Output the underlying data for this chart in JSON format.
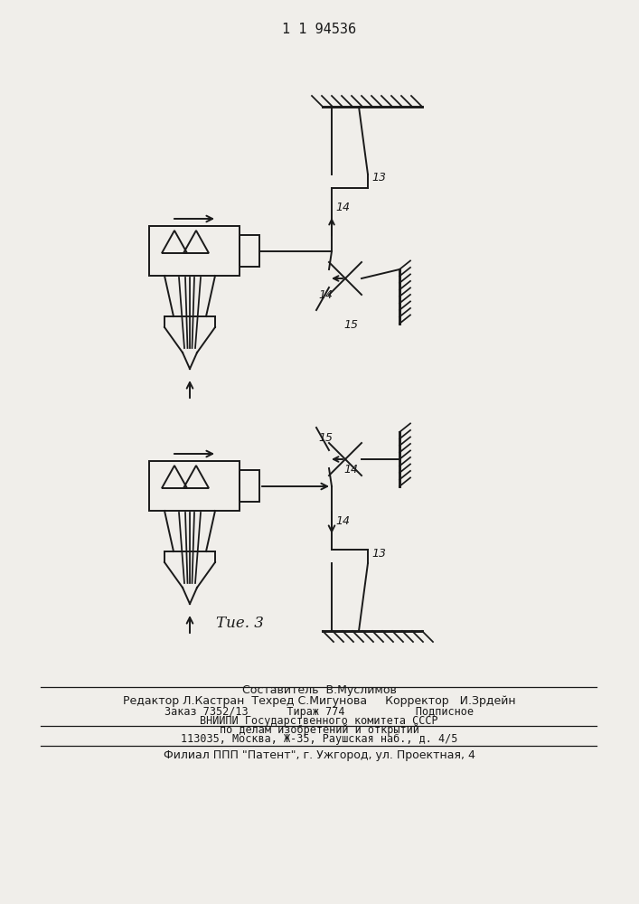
{
  "title": "1 1 94536",
  "fig_label": "Τue. 3",
  "background_color": "#f0eeea",
  "line_color": "#1a1a1a",
  "text1": "Составитель  В.Муслимов",
  "text2": "Редактор Л.Кастран  Техред С.Мигунова     Корректор   И.Зрдейн",
  "text3": "Заказ 7352/13      Тираж 774           Подписное",
  "text4": "ВНИИПИ Государственного комитета СССР",
  "text5": "по делам изобретений и открытий",
  "text6": "113035, Москва, Ж-35, Раушская наб., д. 4/5",
  "text7": "Филиал ППП \"Патент\", г. Ужгород, ул. Проектная, 4"
}
